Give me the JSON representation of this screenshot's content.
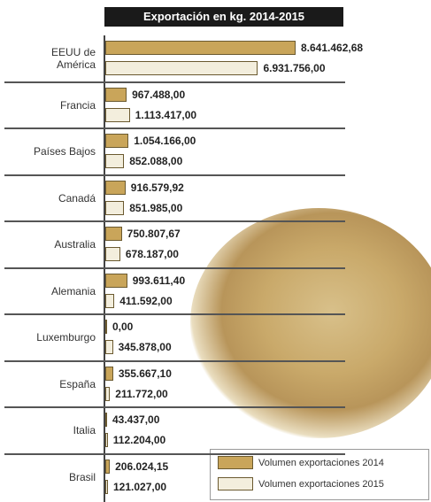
{
  "chart_data": {
    "type": "bar",
    "orientation": "horizontal",
    "title": "Exportación en kg. 2014-2015",
    "categories": [
      "EEUU de América",
      "Francia",
      "Países Bajos",
      "Canadá",
      "Australia",
      "Alemania",
      "Luxemburgo",
      "España",
      "Italia",
      "Brasil"
    ],
    "series": [
      {
        "name": "Volumen exportaciones  2014",
        "color": "#c9a55a",
        "values": [
          8641462.68,
          967488.0,
          1054166.0,
          916579.92,
          750807.67,
          993611.4,
          0.0,
          355667.1,
          43437.0,
          206024.15
        ],
        "value_labels": [
          "8.641.462,68",
          "967.488,00",
          "1.054.166,00",
          "916.579,92",
          "750.807,67",
          "993.611,40",
          "0,00",
          "355.667,10",
          "43.437,00",
          "206.024,15"
        ]
      },
      {
        "name": "Volumen exportaciones  2015",
        "color": "#f3eedd",
        "values": [
          6931756.0,
          1113417.0,
          852088.0,
          851985.0,
          678187.0,
          411592.0,
          345878.0,
          211772.0,
          112204.0,
          121027.0
        ],
        "value_labels": [
          "6.931.756,00",
          "1.113.417,00",
          "852.088,00",
          "851.985,00",
          "678.187,00",
          "411.592,00",
          "345.878,00",
          "211.772,00",
          "112.204,00",
          "121.027,00"
        ]
      }
    ],
    "legend": "bottom-right"
  }
}
